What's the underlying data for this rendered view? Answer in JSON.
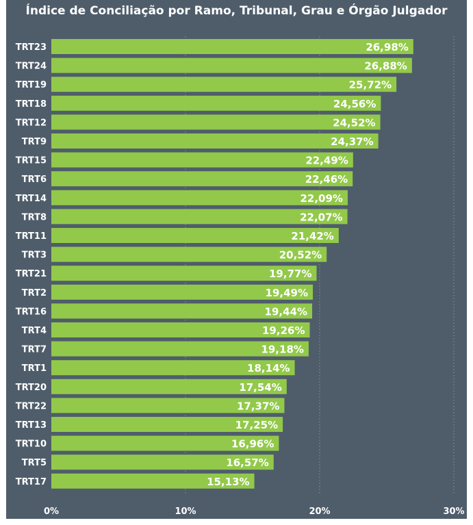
{
  "chart_data": {
    "type": "bar",
    "orientation": "horizontal",
    "title": "Índice de Conciliação por Ramo, Tribunal, Grau e Órgão Julgador",
    "categories": [
      "TRT23",
      "TRT24",
      "TRT19",
      "TRT18",
      "TRT12",
      "TRT9",
      "TRT15",
      "TRT6",
      "TRT14",
      "TRT8",
      "TRT11",
      "TRT3",
      "TRT21",
      "TRT2",
      "TRT16",
      "TRT4",
      "TRT7",
      "TRT1",
      "TRT20",
      "TRT22",
      "TRT13",
      "TRT10",
      "TRT5",
      "TRT17"
    ],
    "values": [
      26.98,
      26.88,
      25.72,
      24.56,
      24.52,
      24.37,
      22.49,
      22.46,
      22.09,
      22.07,
      21.42,
      20.52,
      19.77,
      19.49,
      19.44,
      19.26,
      19.18,
      18.14,
      17.54,
      17.37,
      17.25,
      16.96,
      16.57,
      15.13
    ],
    "value_labels": [
      "26,98%",
      "26,88%",
      "25,72%",
      "24,56%",
      "24,52%",
      "24,37%",
      "22,49%",
      "22,46%",
      "22,09%",
      "22,07%",
      "21,42%",
      "20,52%",
      "19,77%",
      "19,49%",
      "19,44%",
      "19,26%",
      "19,18%",
      "18,14%",
      "17,54%",
      "17,37%",
      "17,25%",
      "16,96%",
      "16,57%",
      "15,13%"
    ],
    "x_ticks": [
      0,
      10,
      20,
      30
    ],
    "x_tick_labels": [
      "0%",
      "10%",
      "20%",
      "30%"
    ],
    "xlim": [
      0,
      30
    ],
    "grid": true,
    "colors": {
      "background": "#4f5d6b",
      "bar": "#92c94a",
      "text": "#ffffff",
      "gridline": "#8a96a2"
    }
  }
}
